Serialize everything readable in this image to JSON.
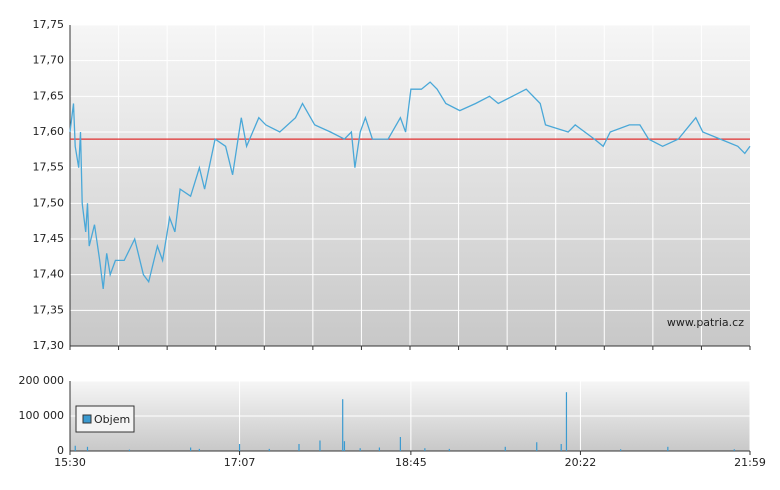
{
  "chart_data": [
    {
      "type": "line",
      "x": [
        "15:30",
        "15:32",
        "15:33",
        "15:35",
        "15:36",
        "15:37",
        "15:39",
        "15:40",
        "15:41",
        "15:44",
        "15:47",
        "15:49",
        "15:51",
        "15:53",
        "15:56",
        "16:01",
        "16:07",
        "16:12",
        "16:15",
        "16:20",
        "16:23",
        "16:27",
        "16:30",
        "16:33",
        "16:39",
        "16:44",
        "16:47",
        "16:53",
        "16:59",
        "17:03",
        "17:08",
        "17:11",
        "17:18",
        "17:22",
        "17:30",
        "17:39",
        "17:43",
        "17:50",
        "17:59",
        "18:07",
        "18:11",
        "18:13",
        "18:16",
        "18:19",
        "18:23",
        "18:32",
        "18:39",
        "18:42",
        "18:45",
        "18:51",
        "18:56",
        "19:00",
        "19:05",
        "19:13",
        "19:22",
        "19:30",
        "19:35",
        "19:43",
        "19:51",
        "19:59",
        "20:02",
        "20:15",
        "20:19",
        "20:30",
        "20:35",
        "20:39",
        "20:50",
        "20:56",
        "21:01",
        "21:09",
        "21:18",
        "21:28",
        "21:32",
        "21:42",
        "21:52",
        "21:56",
        "21:59"
      ],
      "values": [
        17.6,
        17.64,
        17.58,
        17.55,
        17.6,
        17.5,
        17.46,
        17.5,
        17.44,
        17.47,
        17.42,
        17.38,
        17.43,
        17.4,
        17.42,
        17.42,
        17.45,
        17.4,
        17.39,
        17.44,
        17.42,
        17.48,
        17.46,
        17.52,
        17.51,
        17.55,
        17.52,
        17.59,
        17.58,
        17.54,
        17.62,
        17.58,
        17.62,
        17.61,
        17.6,
        17.62,
        17.64,
        17.61,
        17.6,
        17.59,
        17.6,
        17.55,
        17.6,
        17.62,
        17.59,
        17.59,
        17.62,
        17.6,
        17.66,
        17.66,
        17.67,
        17.66,
        17.64,
        17.63,
        17.64,
        17.65,
        17.64,
        17.65,
        17.66,
        17.64,
        17.61,
        17.6,
        17.61,
        17.59,
        17.58,
        17.6,
        17.61,
        17.61,
        17.59,
        17.58,
        17.59,
        17.62,
        17.6,
        17.59,
        17.58,
        17.57,
        17.58
      ],
      "color": "#4aa8d8",
      "reference_line": 17.59,
      "reference_color": "#e03030",
      "xlim": [
        "15:30",
        "21:59"
      ],
      "ylim": [
        17.3,
        17.75
      ],
      "yticks": [
        {
          "value": 17.3,
          "label": "17,30"
        },
        {
          "value": 17.35,
          "label": "17,35"
        },
        {
          "value": 17.4,
          "label": "17,40"
        },
        {
          "value": 17.45,
          "label": "17,45"
        },
        {
          "value": 17.5,
          "label": "17,50"
        },
        {
          "value": 17.55,
          "label": "17,55"
        },
        {
          "value": 17.6,
          "label": "17,60"
        },
        {
          "value": 17.65,
          "label": "17,65"
        },
        {
          "value": 17.7,
          "label": "17,70"
        },
        {
          "value": 17.75,
          "label": "17,75"
        }
      ],
      "grid": true,
      "annotation": "www.patria.cz"
    },
    {
      "type": "bar",
      "x": [
        "15:33",
        "15:40",
        "16:04",
        "16:39",
        "16:44",
        "17:07",
        "17:24",
        "17:41",
        "17:53",
        "18:06",
        "18:07",
        "18:16",
        "18:27",
        "18:39",
        "18:53",
        "19:07",
        "19:39",
        "19:57",
        "20:11",
        "20:14",
        "20:45",
        "21:12",
        "21:50"
      ],
      "series": [
        {
          "name": "Objem",
          "color": "#3a9ad0",
          "values": [
            15000,
            12000,
            4000,
            10000,
            6000,
            20000,
            6000,
            20000,
            30000,
            148000,
            28000,
            8000,
            10000,
            40000,
            8000,
            6000,
            12000,
            25000,
            20000,
            168000,
            5000,
            12000,
            5000
          ]
        }
      ],
      "xlim": [
        "15:30",
        "21:59"
      ],
      "xticks": [
        "15:30",
        "17:07",
        "18:45",
        "20:22",
        "21:59"
      ],
      "ylim": [
        0,
        200000
      ],
      "yticks": [
        0,
        {
          "value": 100000,
          "label": "100 000"
        },
        {
          "value": 200000,
          "label": "200 000"
        }
      ],
      "grid": true,
      "legend": "lower-left"
    }
  ]
}
